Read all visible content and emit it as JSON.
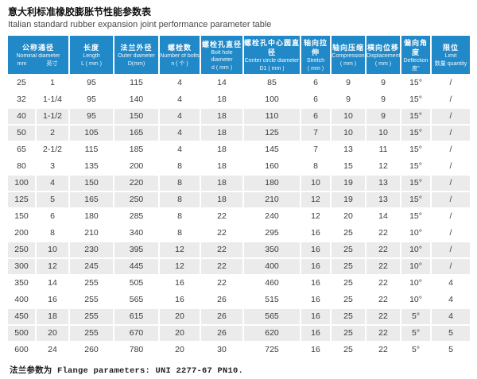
{
  "header": {
    "title_zh": "意大利标准橡胶膨胀节性能参数表",
    "title_en": "Italian standard rubber expansion joint performance parameter table"
  },
  "colors": {
    "header_bg": "#2189c7",
    "stripe_bg": "#ebebeb",
    "header_text": "#ffffff"
  },
  "table": {
    "columns": [
      {
        "zh": "公称通径",
        "en": "Nominal diameter",
        "sub": [
          "mm",
          "英寸"
        ],
        "colspan": 2
      },
      {
        "zh": "长度",
        "en": "Length",
        "unit": "L ( mm )"
      },
      {
        "zh": "法兰外径",
        "en": "Outer diameter",
        "unit": "D(mm)"
      },
      {
        "zh": "螺栓数",
        "en": "Number of bolts",
        "unit": "n ( 个 )"
      },
      {
        "zh": "螺栓孔直径",
        "en": "Bolt hole diameter",
        "unit": "d ( mm )"
      },
      {
        "zh": "螺栓孔中心圆直径",
        "en": "Center circle diameter",
        "unit": "D1 ( mm )"
      },
      {
        "zh": "轴向拉伸",
        "en": "Stretch",
        "unit": "( mm )"
      },
      {
        "zh": "轴向压缩",
        "en": "Compression",
        "unit": "( mm )"
      },
      {
        "zh": "横向位移",
        "en": "Displacement",
        "unit": "( mm )"
      },
      {
        "zh": "偏向角度",
        "en": "Deflection",
        "unit": "度°"
      },
      {
        "zh": "限位",
        "en": "Limit",
        "unit": "数量 quantity"
      }
    ],
    "rows": [
      [
        "25",
        "1",
        "95",
        "115",
        "4",
        "14",
        "85",
        "6",
        "9",
        "9",
        "15°",
        "/"
      ],
      [
        "32",
        "1-1/4",
        "95",
        "140",
        "4",
        "18",
        "100",
        "6",
        "9",
        "9",
        "15°",
        "/"
      ],
      [
        "40",
        "1-1/2",
        "95",
        "150",
        "4",
        "18",
        "110",
        "6",
        "10",
        "9",
        "15°",
        "/"
      ],
      [
        "50",
        "2",
        "105",
        "165",
        "4",
        "18",
        "125",
        "7",
        "10",
        "10",
        "15°",
        "/"
      ],
      [
        "65",
        "2-1/2",
        "115",
        "185",
        "4",
        "18",
        "145",
        "7",
        "13",
        "11",
        "15°",
        "/"
      ],
      [
        "80",
        "3",
        "135",
        "200",
        "8",
        "18",
        "160",
        "8",
        "15",
        "12",
        "15°",
        "/"
      ],
      [
        "100",
        "4",
        "150",
        "220",
        "8",
        "18",
        "180",
        "10",
        "19",
        "13",
        "15°",
        "/"
      ],
      [
        "125",
        "5",
        "165",
        "250",
        "8",
        "18",
        "210",
        "12",
        "19",
        "13",
        "15°",
        "/"
      ],
      [
        "150",
        "6",
        "180",
        "285",
        "8",
        "22",
        "240",
        "12",
        "20",
        "14",
        "15°",
        "/"
      ],
      [
        "200",
        "8",
        "210",
        "340",
        "8",
        "22",
        "295",
        "16",
        "25",
        "22",
        "10°",
        "/"
      ],
      [
        "250",
        "10",
        "230",
        "395",
        "12",
        "22",
        "350",
        "16",
        "25",
        "22",
        "10°",
        "/"
      ],
      [
        "300",
        "12",
        "245",
        "445",
        "12",
        "22",
        "400",
        "16",
        "25",
        "22",
        "10°",
        "/"
      ],
      [
        "350",
        "14",
        "255",
        "505",
        "16",
        "22",
        "460",
        "16",
        "25",
        "22",
        "10°",
        "4"
      ],
      [
        "400",
        "16",
        "255",
        "565",
        "16",
        "26",
        "515",
        "16",
        "25",
        "22",
        "10°",
        "4"
      ],
      [
        "450",
        "18",
        "255",
        "615",
        "20",
        "26",
        "565",
        "16",
        "25",
        "22",
        "5°",
        "4"
      ],
      [
        "500",
        "20",
        "255",
        "670",
        "20",
        "26",
        "620",
        "16",
        "25",
        "22",
        "5°",
        "5"
      ],
      [
        "600",
        "24",
        "260",
        "780",
        "20",
        "30",
        "725",
        "16",
        "25",
        "22",
        "5°",
        "5"
      ]
    ]
  },
  "footer": {
    "note": "法兰参数为 Flange parameters: UNI 2277-67 PN10."
  }
}
